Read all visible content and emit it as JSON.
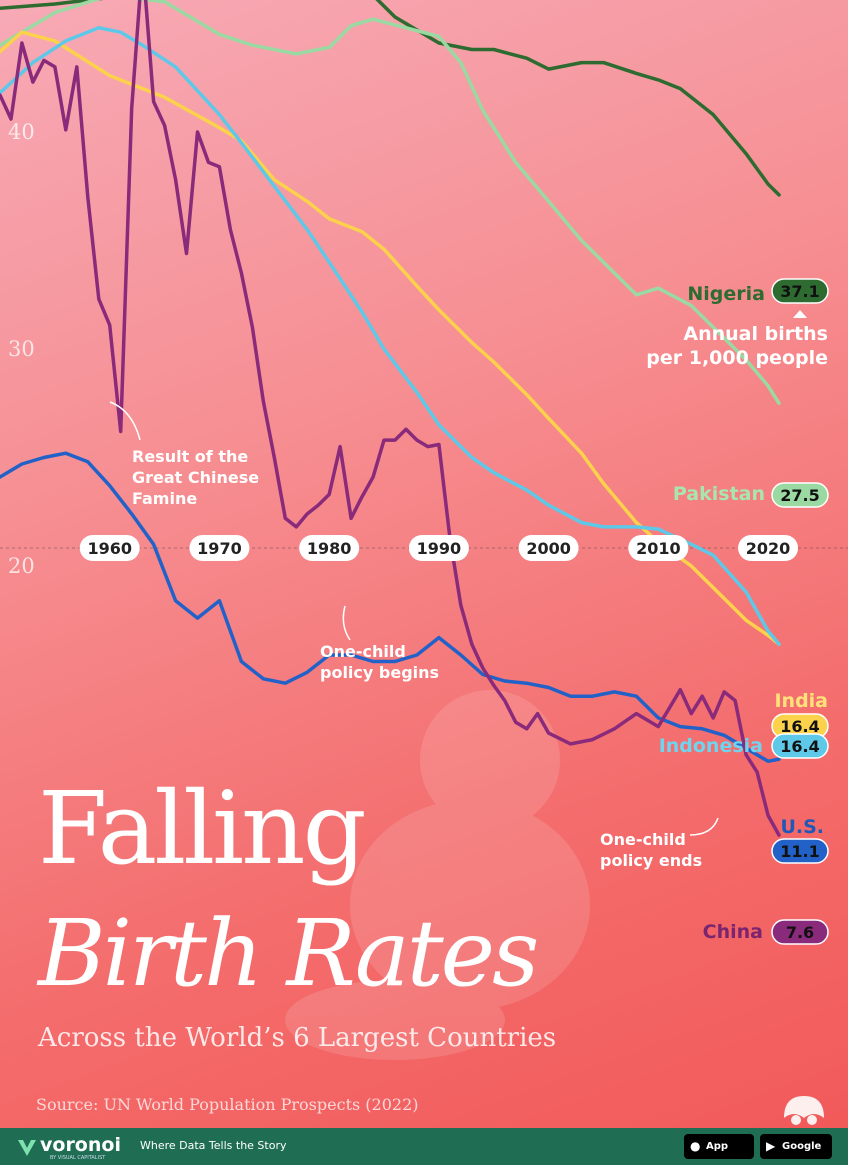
{
  "title_line1": "Falling",
  "title_line2": "Birth Rates",
  "subtitle": "Across the World’s 6 Largest Countries",
  "source": "Source: UN World Population Prospects (2022)",
  "units_label": [
    "Annual births",
    "per 1,000 people"
  ],
  "footer": {
    "brand": "voronoi",
    "brand_sub": "BY VISUAL CAPITALIST",
    "tagline": "Where Data Tells the Story",
    "app_store": "App Store",
    "google_play": "Google Play",
    "background_color": "#1f6e54"
  },
  "chart_data": {
    "type": "line",
    "title": "Falling Birth Rates",
    "subtitle": "Across the World’s 6 Largest Countries",
    "xlabel": "",
    "ylabel": "",
    "xlim": [
      1950,
      2022
    ],
    "ylim": [
      0,
      50
    ],
    "x_ticks": [
      1960,
      1970,
      1980,
      1990,
      2000,
      2010,
      2020
    ],
    "y_ticks": [
      20,
      30,
      40
    ],
    "grid": false,
    "legend": "direct labels at line ends",
    "annotations": [
      {
        "text": [
          "Result of the",
          "Great Chinese",
          "Famine"
        ],
        "x": 1961,
        "y": 26.7
      },
      {
        "text": [
          "One-child",
          "policy begins"
        ],
        "x": 1980,
        "y": 23.5
      },
      {
        "text": [
          "One-child",
          "policy ends"
        ],
        "x": 2015,
        "y": 11.3
      }
    ],
    "series": [
      {
        "name": "Nigeria",
        "color": "#2e6b30",
        "end_value_label": "37.1",
        "x": [
          1950,
          1955,
          1960,
          1962,
          1965,
          1968,
          1970,
          1972,
          1974,
          1976,
          1978,
          1980,
          1982,
          1984,
          1986,
          1988,
          1990,
          1993,
          1995,
          1998,
          2000,
          2003,
          2005,
          2008,
          2010,
          2012,
          2015,
          2018,
          2020,
          2021
        ],
        "values": [
          45.7,
          45.9,
          46.2,
          46.3,
          46.6,
          46.7,
          46.8,
          47.1,
          47.6,
          48.1,
          48.2,
          47.9,
          47.4,
          46.3,
          45.3,
          44.7,
          44.1,
          43.8,
          43.8,
          43.4,
          42.9,
          43.2,
          43.2,
          42.7,
          42.4,
          42.0,
          40.8,
          39.0,
          37.6,
          37.1
        ]
      },
      {
        "name": "Pakistan",
        "color": "#9bd9a2",
        "end_value_label": "27.5",
        "x": [
          1950,
          1955,
          1960,
          1965,
          1970,
          1973,
          1977,
          1980,
          1982,
          1984,
          1987,
          1990,
          1992,
          1994,
          1997,
          2000,
          2003,
          2005,
          2008,
          2010,
          2013,
          2016,
          2018,
          2020,
          2021
        ],
        "values": [
          44.0,
          45.5,
          46.3,
          46.0,
          44.5,
          44.0,
          43.6,
          43.9,
          44.9,
          45.2,
          44.8,
          44.4,
          43.2,
          41.0,
          38.6,
          36.8,
          35.0,
          34.0,
          32.5,
          32.8,
          32.0,
          30.5,
          29.5,
          28.3,
          27.5
        ]
      },
      {
        "name": "India",
        "color": "#fcd14b",
        "end_value_label": "16.4",
        "x": [
          1950,
          1952,
          1955,
          1960,
          1965,
          1970,
          1972,
          1975,
          1978,
          1980,
          1983,
          1985,
          1988,
          1990,
          1993,
          1995,
          1998,
          2000,
          2003,
          2005,
          2008,
          2010,
          2013,
          2016,
          2018,
          2020,
          2021
        ],
        "values": [
          43.7,
          44.6,
          44.2,
          42.6,
          41.6,
          40.2,
          39.6,
          37.8,
          36.8,
          36.0,
          35.4,
          34.6,
          32.9,
          31.8,
          30.3,
          29.4,
          27.9,
          26.8,
          25.2,
          23.8,
          22.0,
          21.1,
          20.0,
          18.5,
          17.5,
          16.8,
          16.4
        ]
      },
      {
        "name": "Indonesia",
        "color": "#5ec8e8",
        "end_value_label": "16.4",
        "x": [
          1950,
          1953,
          1956,
          1959,
          1961,
          1963,
          1966,
          1970,
          1972,
          1975,
          1978,
          1980,
          1983,
          1985,
          1988,
          1990,
          1993,
          1995,
          1998,
          2000,
          2003,
          2005,
          2008,
          2010,
          2013,
          2015,
          2018,
          2020,
          2021
        ],
        "values": [
          41.8,
          43.2,
          44.2,
          44.8,
          44.6,
          44.0,
          43.0,
          40.8,
          39.5,
          37.5,
          35.5,
          34.0,
          31.7,
          30.0,
          28.0,
          26.5,
          25.0,
          24.3,
          23.5,
          22.8,
          22.0,
          21.8,
          21.8,
          21.7,
          21.0,
          20.5,
          18.8,
          17.0,
          16.4
        ]
      },
      {
        "name": "U.S.",
        "color": "#2262c8",
        "end_value_label": "11.1",
        "x": [
          1950,
          1952,
          1954,
          1956,
          1958,
          1960,
          1962,
          1964,
          1966,
          1968,
          1970,
          1972,
          1974,
          1976,
          1978,
          1980,
          1982,
          1984,
          1986,
          1988,
          1990,
          1992,
          1994,
          1996,
          1998,
          2000,
          2002,
          2004,
          2006,
          2008,
          2010,
          2012,
          2014,
          2016,
          2018,
          2020,
          2021
        ],
        "values": [
          24.1,
          24.7,
          25.0,
          25.2,
          24.8,
          23.7,
          22.4,
          21.0,
          18.4,
          17.6,
          18.4,
          15.6,
          14.8,
          14.6,
          15.1,
          15.9,
          15.9,
          15.6,
          15.6,
          15.9,
          16.7,
          15.9,
          15.0,
          14.7,
          14.6,
          14.4,
          14.0,
          14.0,
          14.2,
          14.0,
          13.0,
          12.6,
          12.5,
          12.2,
          11.6,
          11.0,
          11.1
        ]
      },
      {
        "name": "China",
        "color": "#8a2a7a",
        "end_value_label": "7.6",
        "x": [
          1950,
          1951,
          1952,
          1953,
          1954,
          1955,
          1956,
          1957,
          1958,
          1959,
          1960,
          1961,
          1962,
          1963,
          1964,
          1965,
          1966,
          1967,
          1968,
          1969,
          1970,
          1971,
          1972,
          1973,
          1974,
          1975,
          1976,
          1977,
          1978,
          1979,
          1980,
          1981,
          1982,
          1983,
          1984,
          1985,
          1986,
          1987,
          1988,
          1989,
          1990,
          1991,
          1992,
          1993,
          1994,
          1995,
          1996,
          1997,
          1998,
          1999,
          2000,
          2002,
          2004,
          2006,
          2008,
          2010,
          2012,
          2013,
          2014,
          2015,
          2016,
          2017,
          2018,
          2019,
          2020,
          2021
        ],
        "values": [
          41.7,
          40.6,
          44.1,
          42.3,
          43.3,
          43.0,
          40.1,
          43.0,
          37.0,
          32.3,
          31.1,
          26.2,
          41.1,
          47.9,
          41.4,
          40.3,
          37.8,
          34.4,
          40.0,
          38.6,
          38.4,
          35.5,
          33.5,
          31.0,
          27.6,
          25.0,
          22.2,
          21.8,
          22.4,
          22.8,
          23.3,
          25.5,
          22.2,
          23.2,
          24.1,
          25.8,
          25.8,
          26.3,
          25.8,
          25.5,
          25.6,
          21.3,
          18.2,
          16.4,
          15.3,
          14.5,
          13.8,
          12.8,
          12.5,
          13.2,
          12.3,
          11.8,
          12.0,
          12.5,
          13.2,
          12.6,
          14.3,
          13.2,
          14.0,
          13.0,
          14.2,
          13.8,
          11.3,
          10.5,
          8.5,
          7.6
        ]
      }
    ]
  }
}
